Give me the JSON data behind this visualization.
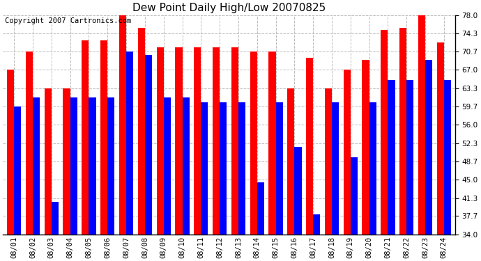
{
  "title": "Dew Point Daily High/Low 20070825",
  "copyright": "Copyright 2007 Cartronics.com",
  "dates": [
    "08/01",
    "08/02",
    "08/03",
    "08/04",
    "08/05",
    "08/06",
    "08/07",
    "08/08",
    "08/09",
    "08/10",
    "08/11",
    "08/12",
    "08/13",
    "08/14",
    "08/15",
    "08/16",
    "08/17",
    "08/18",
    "08/19",
    "08/20",
    "08/21",
    "08/22",
    "08/23",
    "08/24"
  ],
  "highs": [
    67.0,
    70.7,
    63.3,
    63.3,
    73.0,
    73.0,
    78.0,
    75.5,
    71.5,
    71.5,
    71.5,
    71.5,
    71.5,
    70.7,
    70.7,
    63.3,
    69.5,
    63.3,
    67.0,
    69.0,
    75.0,
    75.5,
    78.0,
    72.5
  ],
  "lows": [
    59.7,
    61.5,
    40.5,
    61.5,
    61.5,
    61.5,
    70.7,
    70.0,
    61.5,
    61.5,
    60.5,
    60.5,
    60.5,
    44.5,
    60.5,
    51.5,
    38.0,
    60.5,
    49.5,
    60.5,
    65.0,
    65.0,
    69.0,
    65.0
  ],
  "high_color": "#ff0000",
  "low_color": "#0000ff",
  "background_color": "#ffffff",
  "grid_color": "#bbbbbb",
  "ylim": [
    34.0,
    78.0
  ],
  "yticks": [
    34.0,
    37.7,
    41.3,
    45.0,
    48.7,
    52.3,
    56.0,
    59.7,
    63.3,
    67.0,
    70.7,
    74.3,
    78.0
  ],
  "bar_width": 0.38,
  "title_fontsize": 11,
  "tick_fontsize": 7.5,
  "copyright_fontsize": 7.5
}
